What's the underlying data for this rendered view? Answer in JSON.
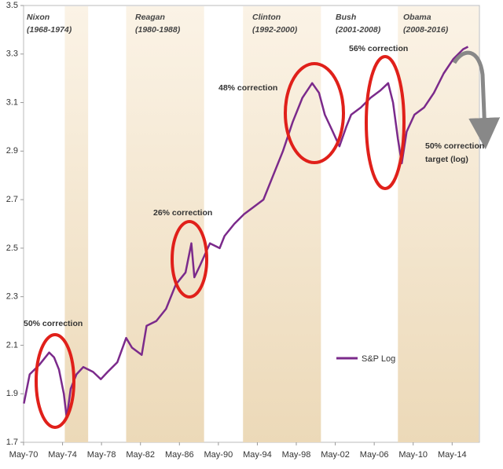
{
  "chart_data": {
    "type": "line",
    "periods": [
      {
        "name": "Nixon",
        "years": "(1968-1974)"
      },
      {
        "name": "Reagan",
        "years": "(1980-1988)"
      },
      {
        "name": "Clinton",
        "years": "(1992-2000)"
      },
      {
        "name": "Bush",
        "years": "(2001-2008)"
      },
      {
        "name": "Obama",
        "years": "(2008-2016)"
      }
    ],
    "shaded_ranges": [
      [
        1974.6,
        1977
      ],
      [
        1980.9,
        1988.9
      ],
      [
        1992.9,
        2000.9
      ],
      [
        2008.8,
        2017.1
      ]
    ],
    "annotations": [
      "50% correction",
      "26% correction",
      "48% correction",
      "56% correction",
      "50% correction",
      "target (log)"
    ],
    "x": [
      1970.4,
      1971,
      1972,
      1973,
      1973.5,
      1974,
      1974.5,
      1974.8,
      1975.2,
      1975.8,
      1976.5,
      1977.5,
      1978.3,
      1979,
      1980,
      1980.9,
      1981.5,
      1982.5,
      1983,
      1984,
      1985,
      1986,
      1987,
      1987.6,
      1987.9,
      1988.5,
      1989.5,
      1990.5,
      1991,
      1992,
      1993,
      1994,
      1995,
      1996,
      1997,
      1998,
      1999,
      2000,
      2000.7,
      2001.3,
      2002,
      2002.8,
      2003.5,
      2004,
      2005,
      2006,
      2007,
      2007.8,
      2008.3,
      2008.8,
      2009.2,
      2009.7,
      2010.5,
      2011.5,
      2012.5,
      2013.5,
      2014.5,
      2015.5,
      2016
    ],
    "series": [
      {
        "name": "S&P Log",
        "color": "#7b2a8b",
        "values": [
          1.86,
          1.98,
          2.02,
          2.07,
          2.05,
          2.0,
          1.9,
          1.8,
          1.92,
          1.98,
          2.01,
          1.99,
          1.96,
          1.99,
          2.03,
          2.13,
          2.09,
          2.06,
          2.18,
          2.2,
          2.25,
          2.35,
          2.4,
          2.52,
          2.38,
          2.43,
          2.52,
          2.5,
          2.55,
          2.6,
          2.64,
          2.67,
          2.7,
          2.8,
          2.9,
          3.02,
          3.12,
          3.18,
          3.14,
          3.05,
          2.99,
          2.92,
          3.0,
          3.05,
          3.08,
          3.12,
          3.15,
          3.18,
          3.1,
          2.95,
          2.85,
          2.98,
          3.05,
          3.08,
          3.14,
          3.22,
          3.28,
          3.32,
          3.33
        ]
      }
    ],
    "xlim": [
      1970.37,
      2017.17
    ],
    "xticks": [
      {
        "value": 1970.37,
        "label": "May-70"
      },
      {
        "value": 1974.37,
        "label": "May-74"
      },
      {
        "value": 1978.37,
        "label": "May-78"
      },
      {
        "value": 1982.37,
        "label": "May-82"
      },
      {
        "value": 1986.37,
        "label": "May-86"
      },
      {
        "value": 1990.37,
        "label": "May-90"
      },
      {
        "value": 1994.37,
        "label": "May-94"
      },
      {
        "value": 1998.37,
        "label": "May-98"
      },
      {
        "value": 2002.37,
        "label": "May-02"
      },
      {
        "value": 2006.37,
        "label": "May-06"
      },
      {
        "value": 2010.37,
        "label": "May-10"
      },
      {
        "value": 2014.37,
        "label": "May-14"
      }
    ],
    "ylim": [
      1.7,
      3.5
    ],
    "yticks": [
      1.7,
      1.9,
      2.1,
      2.3,
      2.5,
      2.7,
      2.9,
      3.1,
      3.3,
      3.5
    ]
  }
}
